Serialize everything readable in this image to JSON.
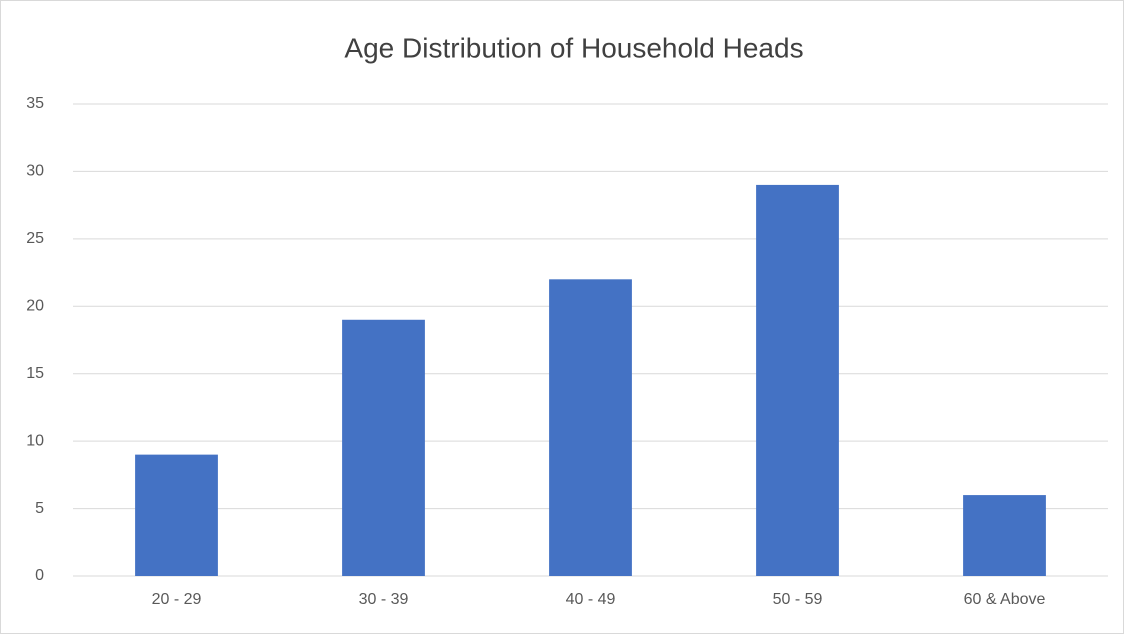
{
  "chart_data": {
    "type": "bar",
    "title": "Age Distribution of Household Heads",
    "categories": [
      "20 - 29",
      "30 - 39",
      "40 - 49",
      "50 - 59",
      "60 & Above"
    ],
    "values": [
      9,
      19,
      22,
      29,
      6
    ],
    "color": "#4472c4",
    "ylim": [
      0,
      35
    ],
    "yticks": [
      0,
      5,
      10,
      15,
      20,
      25,
      30,
      35
    ],
    "grid": true
  }
}
